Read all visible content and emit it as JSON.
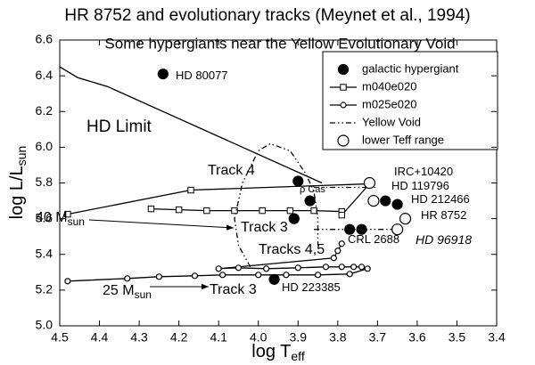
{
  "chart_data": {
    "type": "scatter",
    "title": "HR 8752 and evolutionary tracks (Meynet et al., 1994)",
    "subtitle": "Some hypergiants near the Yellow Evolutionary Void",
    "x_label": {
      "text": "log T",
      "sub": "eff"
    },
    "y_label": {
      "text": "log L/L",
      "sub": "sun"
    },
    "xlim": [
      4.5,
      3.4
    ],
    "ylim": [
      5.0,
      6.6
    ],
    "xticks": [
      4.5,
      4.4,
      4.3,
      4.2,
      4.1,
      {
        "value": 4.0,
        "label": "4.0"
      },
      3.9,
      3.8,
      3.7,
      3.6,
      3.5,
      3.4
    ],
    "yticks": [
      {
        "value": 5.0,
        "label": "5.0"
      },
      5.2,
      5.4,
      5.6,
      5.8,
      {
        "value": 6.0,
        "label": "6.0"
      },
      6.2,
      6.4,
      6.6
    ],
    "legend": "upper right",
    "limit": {
      "name": "HD Limit",
      "color": "#000000",
      "x": [
        4.5,
        4.455,
        4.38,
        3.84
      ],
      "y": [
        6.45,
        6.39,
        6.34,
        5.8
      ]
    },
    "series": [
      {
        "name": "galactic hypergiant",
        "marker": "circle",
        "fill": "#000000",
        "line": "none",
        "color": "#000000",
        "x": [
          4.24,
          3.9,
          3.87,
          3.91,
          3.68,
          3.65,
          3.77,
          3.74,
          3.96
        ],
        "y": [
          6.41,
          5.81,
          5.7,
          5.6,
          5.7,
          5.68,
          5.54,
          5.54,
          5.26
        ]
      },
      {
        "name": "m040e020",
        "marker": "square",
        "fill": "#ffffff",
        "line": "solid",
        "color": "#000000",
        "x": [
          4.27,
          4.2,
          4.13,
          4.06,
          3.99,
          3.92,
          3.86,
          3.79,
          3.79,
          3.72,
          4.17,
          4.48
        ],
        "y": [
          5.655,
          5.65,
          5.645,
          5.645,
          5.645,
          5.645,
          5.645,
          5.64,
          5.62,
          5.795,
          5.76,
          5.625
        ]
      },
      {
        "name": "m025e020",
        "marker": "circle",
        "fill": "#ffffff",
        "line": "solid",
        "color": "#000000",
        "x": [
          4.48,
          4.33,
          4.25,
          4.16,
          4.09,
          4.0,
          3.93,
          3.85,
          3.77,
          3.725,
          3.74,
          3.76,
          3.79,
          3.83,
          3.9,
          3.98,
          4.05,
          4.1,
          3.81,
          3.8,
          3.79
        ],
        "y": [
          5.25,
          5.265,
          5.275,
          5.28,
          5.285,
          5.285,
          5.285,
          5.285,
          5.29,
          5.32,
          5.33,
          5.33,
          5.33,
          5.33,
          5.325,
          5.32,
          5.325,
          5.32,
          5.38,
          5.42,
          5.46
        ]
      },
      {
        "name": "Yellow Void",
        "marker": "none",
        "fill": "none",
        "line": "dashdot",
        "color": "#000000",
        "x": [
          4.02,
          4.05,
          4.06,
          4.04,
          4.0,
          3.97,
          3.92,
          3.88,
          3.86,
          3.85,
          3.85,
          null,
          3.86,
          3.7,
          null,
          3.86,
          3.64
        ],
        "y": [
          5.33,
          5.45,
          5.6,
          5.8,
          5.98,
          6.02,
          5.98,
          5.85,
          5.75,
          5.6,
          5.45,
          null,
          5.775,
          5.775,
          null,
          5.54,
          5.54
        ]
      },
      {
        "name": "lower Teff range",
        "marker": "circle",
        "fill": "#ffffff",
        "line": "none",
        "color": "#000000",
        "x": [
          3.72,
          3.71,
          3.63,
          3.65
        ],
        "y": [
          5.8,
          5.7,
          5.6,
          5.54
        ]
      }
    ],
    "annotations": [
      {
        "text": "HD 80077"
      },
      {
        "text": "HD Limit"
      },
      {
        "text": "Track 4"
      },
      {
        "text": "40 M",
        "sub": "sun"
      },
      {
        "text": "Track 3"
      },
      {
        "text": "Tracks 4,5"
      },
      {
        "text": "25 M",
        "sub": "sun"
      },
      {
        "text": "Track 3"
      },
      {
        "text": "HD 223385"
      },
      {
        "text": "CRL 2688"
      },
      {
        "text": "HR 8752"
      },
      {
        "text": "HD 96918"
      },
      {
        "text": "HD 212466"
      },
      {
        "text": "HD 119796"
      },
      {
        "text": "IRC+10420"
      },
      {
        "text": "ρ Cas"
      }
    ]
  }
}
